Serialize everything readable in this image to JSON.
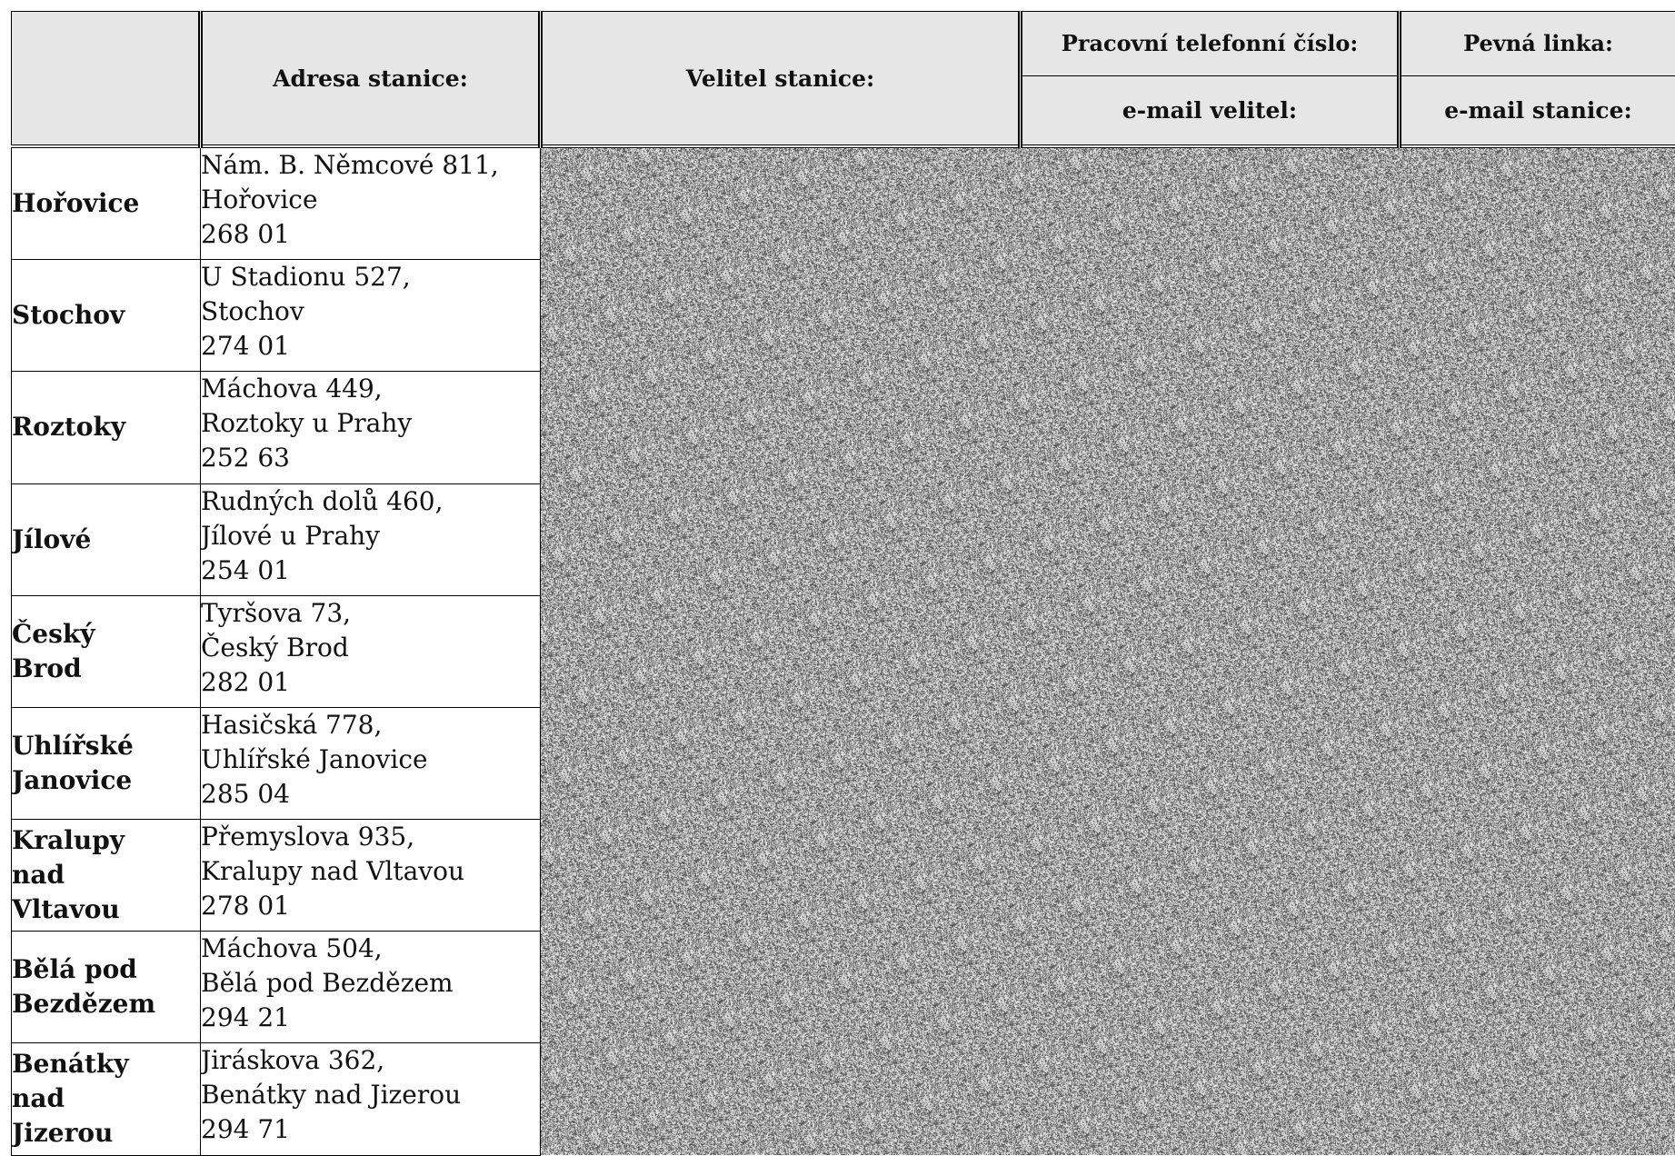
{
  "header": {
    "address": "Adresa stanice:",
    "commander": "Velitel stanice:",
    "work_phone": "Pracovní telefonní číslo:",
    "email_commander": "e-mail velitel:",
    "landline": "Pevná linka:",
    "email_station": "e-mail stanice:"
  },
  "stations": [
    {
      "name": "Hořovice",
      "street": "Nám. B. Němcové 811,",
      "town": "Hořovice",
      "zip": "268 01"
    },
    {
      "name": "Stochov",
      "street": "U Stadionu 527,",
      "town": "Stochov",
      "zip": "274 01"
    },
    {
      "name": "Roztoky",
      "street": "Máchova 449,",
      "town": "Roztoky u Prahy",
      "zip": "252 63"
    },
    {
      "name": "Jílové",
      "street": "Rudných dolů 460,",
      "town": "Jílové u Prahy",
      "zip": "254 01"
    },
    {
      "name": "Český\nBrod",
      "street": "Tyršova 73,",
      "town": "Český Brod",
      "zip": "282 01"
    },
    {
      "name": "Uhlířské\nJanovice",
      "street": "Hasičská 778,",
      "town": "Uhlířské Janovice",
      "zip": "285 04"
    },
    {
      "name": "Kralupy\nnad\nVltavou",
      "street": "Přemyslova 935,",
      "town": "Kralupy nad Vltavou",
      "zip": "278 01"
    },
    {
      "name": "Bělá pod\nBezdězem",
      "street": "Máchova 504,",
      "town": "Bělá pod Bezdězem",
      "zip": "294 21"
    },
    {
      "name": "Benátky\nnad\nJizerou",
      "street": "Jiráskova 362,",
      "town": "Benátky nad Jizerou",
      "zip": "294 71"
    }
  ]
}
